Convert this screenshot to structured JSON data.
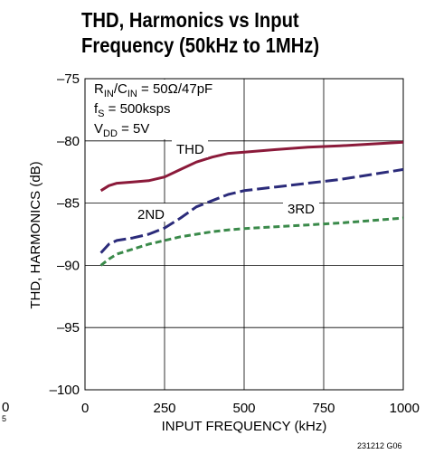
{
  "chart_data": {
    "type": "line",
    "title_line1": "THD, Harmonics vs Input",
    "title_line2": "Frequency (50kHz to 1MHz)",
    "xlabel": "INPUT FREQUENCY (kHz)",
    "ylabel": "THD, HARMONICS (dB)",
    "xlim": [
      0,
      1000
    ],
    "ylim": [
      -100,
      -75
    ],
    "x_ticks": [
      0,
      250,
      500,
      750,
      1000
    ],
    "y_ticks": [
      -75,
      -80,
      -85,
      -90,
      -95,
      -100
    ],
    "x_tick_labels": [
      "0",
      "250",
      "500",
      "750",
      "1000"
    ],
    "y_tick_labels": [
      "–75",
      "–80",
      "–85",
      "–90",
      "–95",
      "–100"
    ],
    "grid": true,
    "conditions": {
      "line1_r": "R",
      "line1_r_sub": "IN",
      "line1_slash": "/C",
      "line1_c_sub": "IN",
      "line1_value": " = 50Ω/47pF",
      "line2_f": "f",
      "line2_f_sub": "S",
      "line2_value": " = 500ksps",
      "line3_v": "V",
      "line3_v_sub": "DD",
      "line3_value": " = 5V"
    },
    "series": [
      {
        "name": "THD",
        "color": "#8b1a3a",
        "style": "solid",
        "x": [
          50,
          75,
          100,
          150,
          200,
          250,
          300,
          350,
          400,
          450,
          500,
          600,
          700,
          800,
          900,
          1000
        ],
        "y": [
          -84.0,
          -83.6,
          -83.4,
          -83.3,
          -83.2,
          -82.9,
          -82.3,
          -81.7,
          -81.3,
          -81.0,
          -80.9,
          -80.7,
          -80.5,
          -80.4,
          -80.25,
          -80.1
        ]
      },
      {
        "name": "2ND",
        "color": "#2b2b7a",
        "style": "dashed",
        "x": [
          50,
          75,
          100,
          150,
          200,
          250,
          300,
          350,
          400,
          450,
          500,
          600,
          700,
          800,
          900,
          1000
        ],
        "y": [
          -89.0,
          -88.3,
          -88.0,
          -87.8,
          -87.5,
          -87.0,
          -86.2,
          -85.3,
          -84.8,
          -84.3,
          -84.0,
          -83.7,
          -83.4,
          -83.1,
          -82.7,
          -82.3
        ]
      },
      {
        "name": "3RD",
        "color": "#3a8a4a",
        "style": "dashed",
        "x": [
          50,
          75,
          100,
          150,
          200,
          250,
          300,
          350,
          400,
          450,
          500,
          600,
          700,
          800,
          900,
          1000
        ],
        "y": [
          -90.0,
          -89.5,
          -89.1,
          -88.7,
          -88.3,
          -88.0,
          -87.7,
          -87.5,
          -87.3,
          -87.15,
          -87.05,
          -86.9,
          -86.75,
          -86.6,
          -86.4,
          -86.2
        ]
      }
    ],
    "series_labels": [
      "THD",
      "2ND",
      "3RD"
    ],
    "figure_code": "231212 G06",
    "edge_text_left": "0",
    "edge_text_left2": "5"
  }
}
